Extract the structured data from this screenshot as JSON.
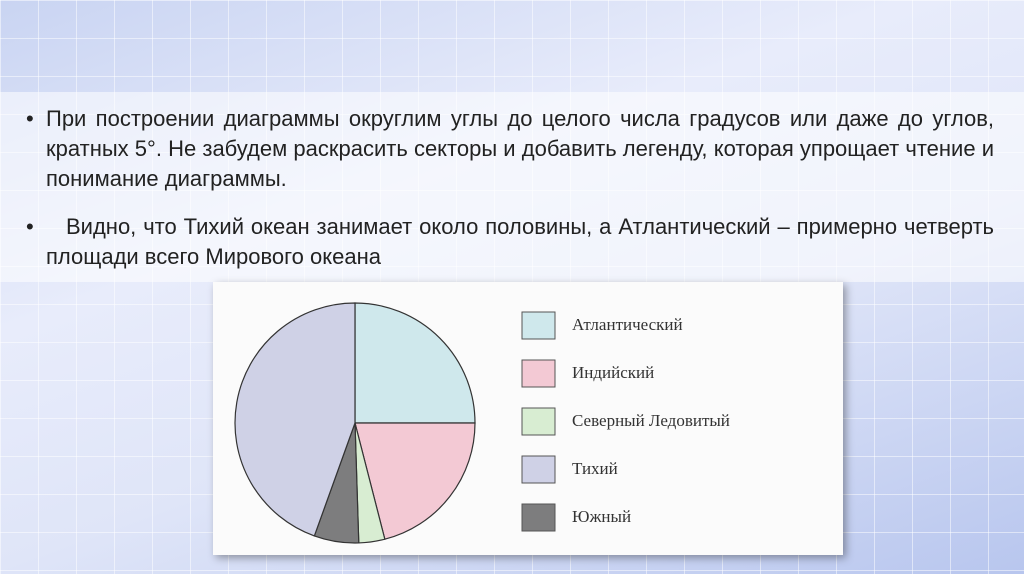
{
  "slide": {
    "bullets": [
      "При построении диаграммы округлим углы до целого числа градусов или даже до углов, кратных 5°. Не забудем раскрасить секторы и добавить легенду, которая упрощает чтение и понимание диаграммы.",
      "Видно, что Тихий океан занимает около половины, а Атлантический – примерно четверть площади всего Мирового океана"
    ]
  },
  "chart_data": {
    "type": "pie",
    "categories": [
      "Атлантический",
      "Индийский",
      "Северный Ледовитый",
      "Южный",
      "Тихий"
    ],
    "values": [
      25,
      21,
      3.5,
      6,
      44.5
    ],
    "colors": [
      "#cfe8ec",
      "#f3c9d4",
      "#d8edd2",
      "#7d7d7e",
      "#cfd1e6"
    ]
  }
}
